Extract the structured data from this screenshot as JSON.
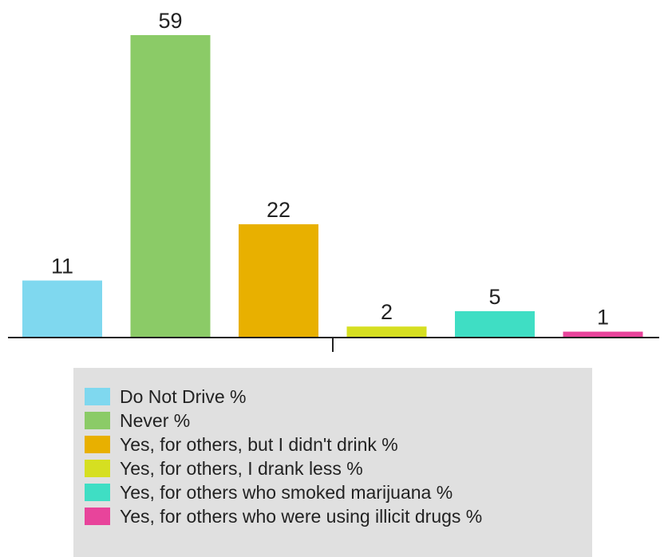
{
  "chart_data": {
    "type": "bar",
    "categories": [
      "Do Not Drive %",
      "Never %",
      "Yes, for others, but I didn't drink %",
      "Yes, for others, I drank less %",
      "Yes, for others who smoked marijuana %",
      "Yes, for others who were using illicit drugs %"
    ],
    "values": [
      11,
      59,
      22,
      2,
      5,
      1
    ],
    "colors": [
      "#7fd8ef",
      "#8bcb67",
      "#e8b000",
      "#d6df21",
      "#3fdec4",
      "#e8449b"
    ],
    "title": "",
    "xlabel": "",
    "ylabel": "",
    "ylim": [
      0,
      59
    ],
    "grid": false,
    "legend_position": "bottom"
  }
}
